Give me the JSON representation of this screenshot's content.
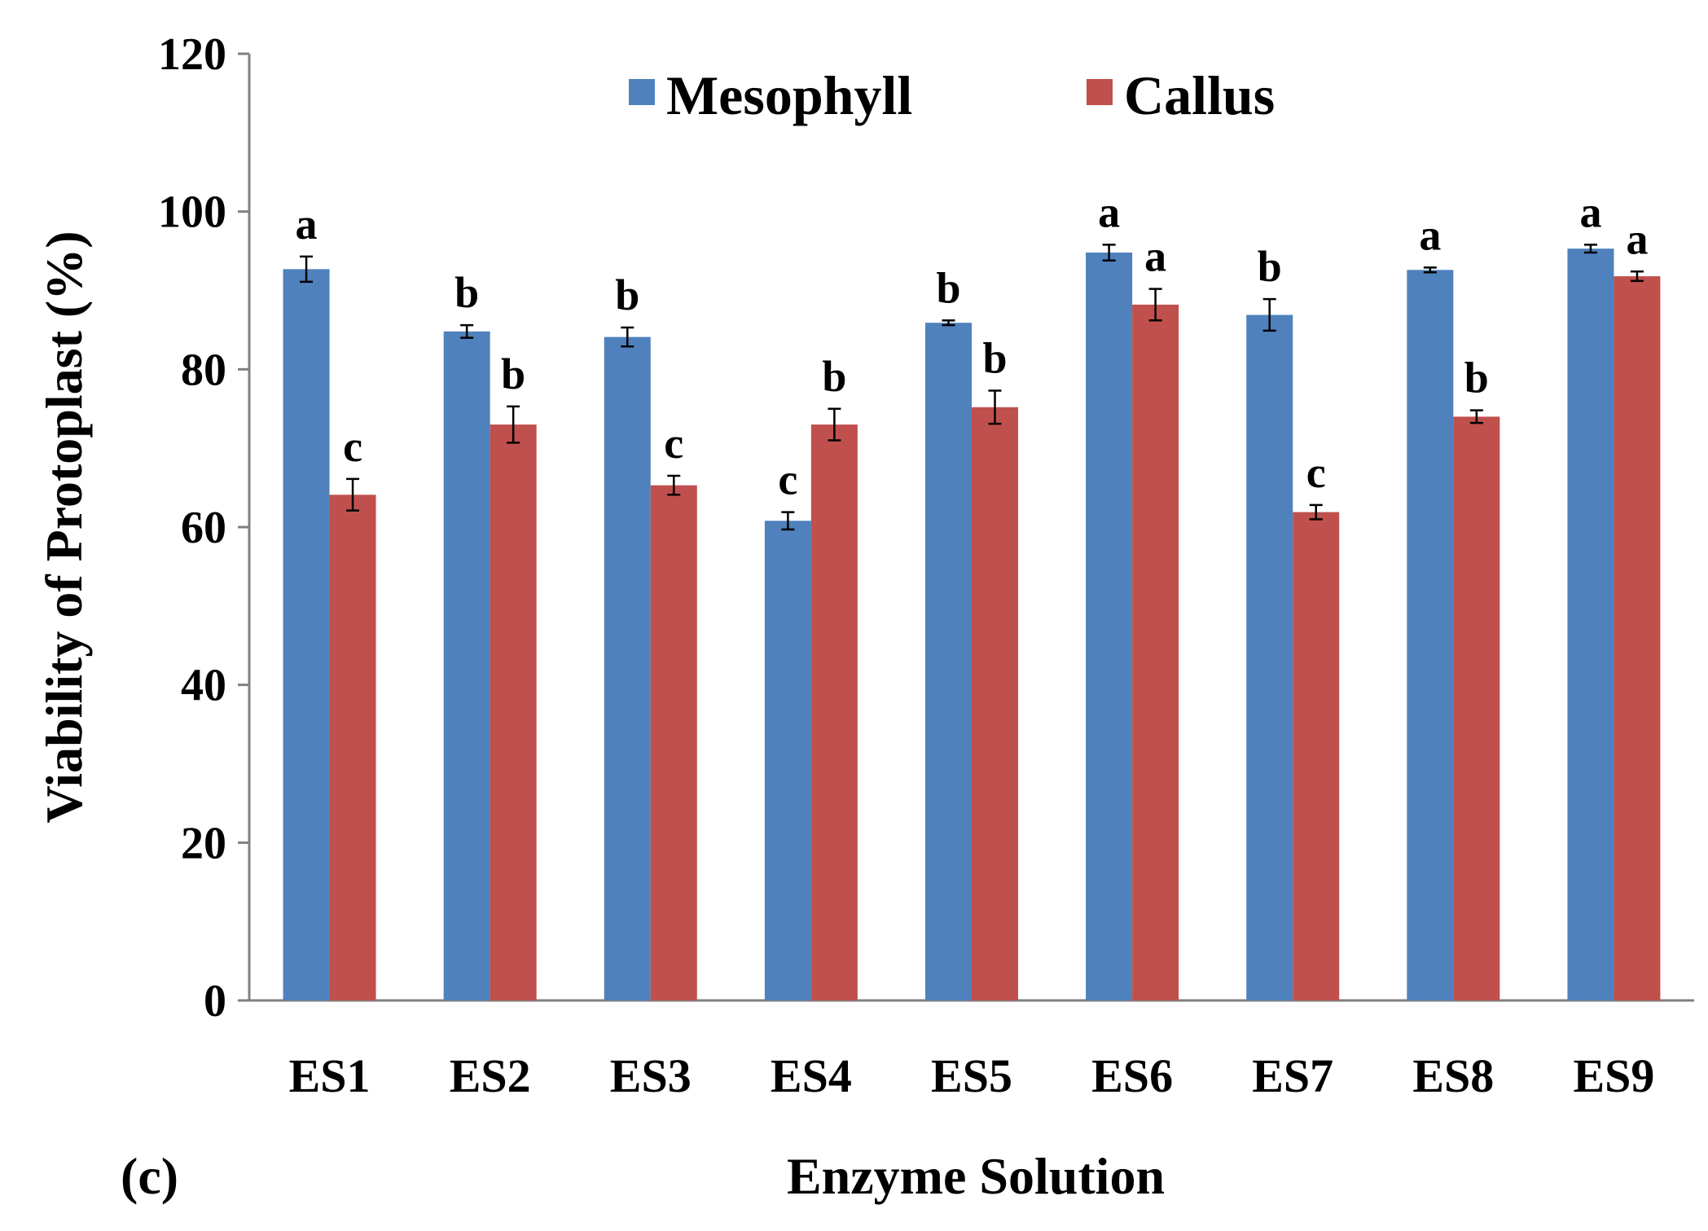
{
  "chart_data": {
    "type": "bar",
    "title": "",
    "panel_label": "(c)",
    "xlabel": "Enzyme Solution",
    "ylabel": "Viability of  Protoplast (%)",
    "ylim": [
      0,
      120
    ],
    "yticks": [
      "0",
      "20",
      "40",
      "60",
      "80",
      "100",
      "120"
    ],
    "categories": [
      "ES1",
      "ES2",
      "ES3",
      "ES4",
      "ES5",
      "ES6",
      "ES7",
      "ES8",
      "ES9"
    ],
    "legend_position": "top",
    "grid": false,
    "series": [
      {
        "name": "Mesophyll",
        "color": "#4F81BD",
        "values": [
          92.7,
          84.8,
          84.1,
          60.8,
          85.9,
          94.8,
          86.9,
          92.6,
          95.3
        ],
        "errors": [
          1.6,
          0.8,
          1.2,
          1.1,
          0.3,
          1.0,
          2.0,
          0.3,
          0.5
        ],
        "letters": [
          "a",
          "b",
          "b",
          "c",
          "b",
          "a",
          "b",
          "a",
          "a"
        ]
      },
      {
        "name": "Callus",
        "color": "#C0504D",
        "values": [
          64.1,
          73.0,
          65.3,
          73.0,
          75.2,
          88.2,
          61.9,
          74.0,
          91.8
        ],
        "errors": [
          2.0,
          2.3,
          1.2,
          2.0,
          2.1,
          2.0,
          0.9,
          0.8,
          0.6
        ],
        "letters": [
          "c",
          "b",
          "c",
          "b",
          "b",
          "a",
          "c",
          "b",
          "a"
        ]
      }
    ]
  }
}
